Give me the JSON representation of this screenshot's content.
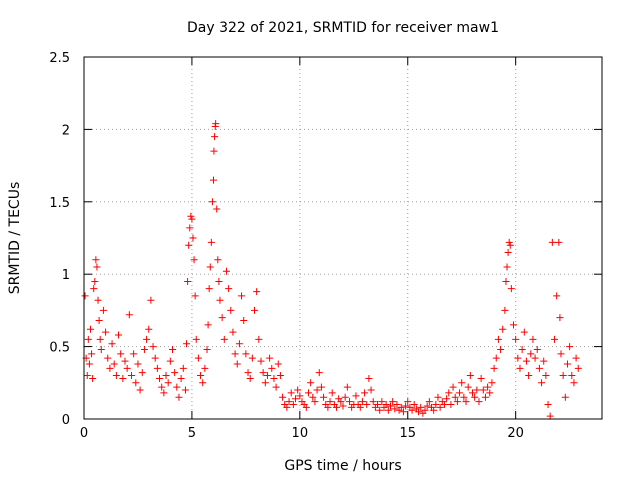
{
  "chart_data": {
    "type": "scatter",
    "title": "Day 322 of 2021, SRMTID for receiver maw1",
    "xlabel": "GPS time / hours",
    "ylabel": "SRMTID / TECUs",
    "xlim": [
      0,
      24
    ],
    "ylim": [
      0,
      2.5
    ],
    "x_ticks": [
      0,
      5,
      10,
      15,
      20
    ],
    "x_tick_labels": [
      "0",
      "5",
      "10",
      "15",
      "20"
    ],
    "y_ticks": [
      0,
      0.5,
      1,
      1.5,
      2,
      2.5
    ],
    "y_tick_labels": [
      "0",
      "0.5",
      "1",
      "1.5",
      "2",
      "2.5"
    ],
    "grid": true,
    "marker": "+",
    "series": [
      {
        "name": "SRMTID",
        "color": "#ff0000",
        "points": [
          [
            0.05,
            0.85
          ],
          [
            0.1,
            0.42
          ],
          [
            0.15,
            0.3
          ],
          [
            0.2,
            0.55
          ],
          [
            0.25,
            0.38
          ],
          [
            0.3,
            0.62
          ],
          [
            0.35,
            0.45
          ],
          [
            0.4,
            0.28
          ],
          [
            0.45,
            0.9
          ],
          [
            0.5,
            0.95
          ],
          [
            0.55,
            1.1
          ],
          [
            0.6,
            1.05
          ],
          [
            0.65,
            0.82
          ],
          [
            0.7,
            0.68
          ],
          [
            0.75,
            0.55
          ],
          [
            0.8,
            0.48
          ],
          [
            0.9,
            0.75
          ],
          [
            1.0,
            0.6
          ],
          [
            1.1,
            0.42
          ],
          [
            1.2,
            0.35
          ],
          [
            1.3,
            0.52
          ],
          [
            1.4,
            0.38
          ],
          [
            1.5,
            0.3
          ],
          [
            1.6,
            0.58
          ],
          [
            1.7,
            0.45
          ],
          [
            1.8,
            0.28
          ],
          [
            1.9,
            0.4
          ],
          [
            2.0,
            0.35
          ],
          [
            2.1,
            0.72
          ],
          [
            2.2,
            0.3
          ],
          [
            2.3,
            0.45
          ],
          [
            2.4,
            0.25
          ],
          [
            2.5,
            0.38
          ],
          [
            2.6,
            0.2
          ],
          [
            2.7,
            0.32
          ],
          [
            2.8,
            0.48
          ],
          [
            2.9,
            0.55
          ],
          [
            3.0,
            0.62
          ],
          [
            3.1,
            0.82
          ],
          [
            3.2,
            0.5
          ],
          [
            3.3,
            0.42
          ],
          [
            3.4,
            0.35
          ],
          [
            3.5,
            0.28
          ],
          [
            3.6,
            0.22
          ],
          [
            3.7,
            0.18
          ],
          [
            3.8,
            0.3
          ],
          [
            3.9,
            0.25
          ],
          [
            4.0,
            0.4
          ],
          [
            4.1,
            0.48
          ],
          [
            4.2,
            0.32
          ],
          [
            4.3,
            0.22
          ],
          [
            4.4,
            0.15
          ],
          [
            4.5,
            0.28
          ],
          [
            4.6,
            0.35
          ],
          [
            4.7,
            0.2
          ],
          [
            4.75,
            0.52
          ],
          [
            4.8,
            0.95
          ],
          [
            4.85,
            1.2
          ],
          [
            4.9,
            1.32
          ],
          [
            4.95,
            1.4
          ],
          [
            5.0,
            1.38
          ],
          [
            5.05,
            1.25
          ],
          [
            5.1,
            1.1
          ],
          [
            5.15,
            0.85
          ],
          [
            5.2,
            0.55
          ],
          [
            5.3,
            0.42
          ],
          [
            5.4,
            0.3
          ],
          [
            5.5,
            0.25
          ],
          [
            5.6,
            0.35
          ],
          [
            5.7,
            0.48
          ],
          [
            5.75,
            0.65
          ],
          [
            5.8,
            0.9
          ],
          [
            5.85,
            1.05
          ],
          [
            5.9,
            1.22
          ],
          [
            5.95,
            1.5
          ],
          [
            6.0,
            1.65
          ],
          [
            6.02,
            1.85
          ],
          [
            6.05,
            1.95
          ],
          [
            6.08,
            2.02
          ],
          [
            6.1,
            2.04
          ],
          [
            6.15,
            1.45
          ],
          [
            6.2,
            1.1
          ],
          [
            6.25,
            0.95
          ],
          [
            6.3,
            0.82
          ],
          [
            6.4,
            0.7
          ],
          [
            6.5,
            0.55
          ],
          [
            6.6,
            1.02
          ],
          [
            6.7,
            0.9
          ],
          [
            6.8,
            0.75
          ],
          [
            6.9,
            0.6
          ],
          [
            7.0,
            0.45
          ],
          [
            7.1,
            0.38
          ],
          [
            7.2,
            0.52
          ],
          [
            7.3,
            0.85
          ],
          [
            7.4,
            0.68
          ],
          [
            7.5,
            0.45
          ],
          [
            7.6,
            0.32
          ],
          [
            7.7,
            0.28
          ],
          [
            7.8,
            0.42
          ],
          [
            7.9,
            0.75
          ],
          [
            8.0,
            0.88
          ],
          [
            8.1,
            0.55
          ],
          [
            8.2,
            0.4
          ],
          [
            8.3,
            0.32
          ],
          [
            8.4,
            0.25
          ],
          [
            8.5,
            0.3
          ],
          [
            8.6,
            0.42
          ],
          [
            8.7,
            0.35
          ],
          [
            8.8,
            0.28
          ],
          [
            8.9,
            0.22
          ],
          [
            9.0,
            0.38
          ],
          [
            9.1,
            0.3
          ],
          [
            9.2,
            0.15
          ],
          [
            9.3,
            0.1
          ],
          [
            9.4,
            0.08
          ],
          [
            9.5,
            0.12
          ],
          [
            9.6,
            0.18
          ],
          [
            9.7,
            0.1
          ],
          [
            9.8,
            0.14
          ],
          [
            9.9,
            0.2
          ],
          [
            10.0,
            0.16
          ],
          [
            10.1,
            0.12
          ],
          [
            10.2,
            0.1
          ],
          [
            10.3,
            0.08
          ],
          [
            10.4,
            0.18
          ],
          [
            10.5,
            0.25
          ],
          [
            10.6,
            0.15
          ],
          [
            10.7,
            0.12
          ],
          [
            10.8,
            0.2
          ],
          [
            10.9,
            0.32
          ],
          [
            11.0,
            0.22
          ],
          [
            11.1,
            0.15
          ],
          [
            11.2,
            0.1
          ],
          [
            11.3,
            0.08
          ],
          [
            11.4,
            0.12
          ],
          [
            11.5,
            0.18
          ],
          [
            11.6,
            0.1
          ],
          [
            11.7,
            0.08
          ],
          [
            11.8,
            0.14
          ],
          [
            11.9,
            0.12
          ],
          [
            12.0,
            0.09
          ],
          [
            12.1,
            0.15
          ],
          [
            12.2,
            0.22
          ],
          [
            12.3,
            0.12
          ],
          [
            12.4,
            0.08
          ],
          [
            12.5,
            0.1
          ],
          [
            12.6,
            0.16
          ],
          [
            12.7,
            0.1
          ],
          [
            12.8,
            0.08
          ],
          [
            12.9,
            0.12
          ],
          [
            13.0,
            0.18
          ],
          [
            13.1,
            0.1
          ],
          [
            13.2,
            0.28
          ],
          [
            13.3,
            0.2
          ],
          [
            13.4,
            0.12
          ],
          [
            13.5,
            0.08
          ],
          [
            13.6,
            0.1
          ],
          [
            13.7,
            0.06
          ],
          [
            13.8,
            0.12
          ],
          [
            13.9,
            0.08
          ],
          [
            14.0,
            0.1
          ],
          [
            14.1,
            0.06
          ],
          [
            14.2,
            0.09
          ],
          [
            14.3,
            0.12
          ],
          [
            14.4,
            0.07
          ],
          [
            14.5,
            0.1
          ],
          [
            14.6,
            0.06
          ],
          [
            14.7,
            0.08
          ],
          [
            14.8,
            0.05
          ],
          [
            14.9,
            0.09
          ],
          [
            15.0,
            0.12
          ],
          [
            15.1,
            0.08
          ],
          [
            15.2,
            0.06
          ],
          [
            15.3,
            0.1
          ],
          [
            15.4,
            0.07
          ],
          [
            15.5,
            0.05
          ],
          [
            15.6,
            0.08
          ],
          [
            15.7,
            0.04
          ],
          [
            15.8,
            0.06
          ],
          [
            15.9,
            0.09
          ],
          [
            16.0,
            0.12
          ],
          [
            16.1,
            0.08
          ],
          [
            16.2,
            0.06
          ],
          [
            16.3,
            0.1
          ],
          [
            16.4,
            0.15
          ],
          [
            16.5,
            0.08
          ],
          [
            16.6,
            0.12
          ],
          [
            16.7,
            0.1
          ],
          [
            16.8,
            0.14
          ],
          [
            16.9,
            0.18
          ],
          [
            17.0,
            0.1
          ],
          [
            17.1,
            0.22
          ],
          [
            17.2,
            0.15
          ],
          [
            17.3,
            0.12
          ],
          [
            17.4,
            0.18
          ],
          [
            17.5,
            0.25
          ],
          [
            17.6,
            0.15
          ],
          [
            17.7,
            0.12
          ],
          [
            17.8,
            0.22
          ],
          [
            17.9,
            0.3
          ],
          [
            18.0,
            0.18
          ],
          [
            18.1,
            0.15
          ],
          [
            18.2,
            0.2
          ],
          [
            18.3,
            0.12
          ],
          [
            18.4,
            0.28
          ],
          [
            18.5,
            0.2
          ],
          [
            18.6,
            0.15
          ],
          [
            18.7,
            0.22
          ],
          [
            18.8,
            0.18
          ],
          [
            18.9,
            0.25
          ],
          [
            19.0,
            0.35
          ],
          [
            19.1,
            0.42
          ],
          [
            19.2,
            0.55
          ],
          [
            19.3,
            0.48
          ],
          [
            19.4,
            0.62
          ],
          [
            19.5,
            0.75
          ],
          [
            19.55,
            0.95
          ],
          [
            19.6,
            1.05
          ],
          [
            19.65,
            1.15
          ],
          [
            19.7,
            1.22
          ],
          [
            19.75,
            1.2
          ],
          [
            19.8,
            0.9
          ],
          [
            19.9,
            0.65
          ],
          [
            20.0,
            0.55
          ],
          [
            20.1,
            0.42
          ],
          [
            20.2,
            0.35
          ],
          [
            20.3,
            0.48
          ],
          [
            20.4,
            0.6
          ],
          [
            20.5,
            0.4
          ],
          [
            20.6,
            0.3
          ],
          [
            20.7,
            0.45
          ],
          [
            20.8,
            0.55
          ],
          [
            20.9,
            0.42
          ],
          [
            21.0,
            0.48
          ],
          [
            21.1,
            0.35
          ],
          [
            21.2,
            0.25
          ],
          [
            21.3,
            0.4
          ],
          [
            21.4,
            0.3
          ],
          [
            21.5,
            0.1
          ],
          [
            21.6,
            0.02
          ],
          [
            21.7,
            1.22
          ],
          [
            21.8,
            0.55
          ],
          [
            21.9,
            0.85
          ],
          [
            22.0,
            1.22
          ],
          [
            22.05,
            0.7
          ],
          [
            22.1,
            0.45
          ],
          [
            22.2,
            0.3
          ],
          [
            22.3,
            0.15
          ],
          [
            22.4,
            0.38
          ],
          [
            22.5,
            0.5
          ],
          [
            22.6,
            0.3
          ],
          [
            22.7,
            0.25
          ],
          [
            22.8,
            0.42
          ],
          [
            22.9,
            0.35
          ]
        ]
      }
    ]
  }
}
